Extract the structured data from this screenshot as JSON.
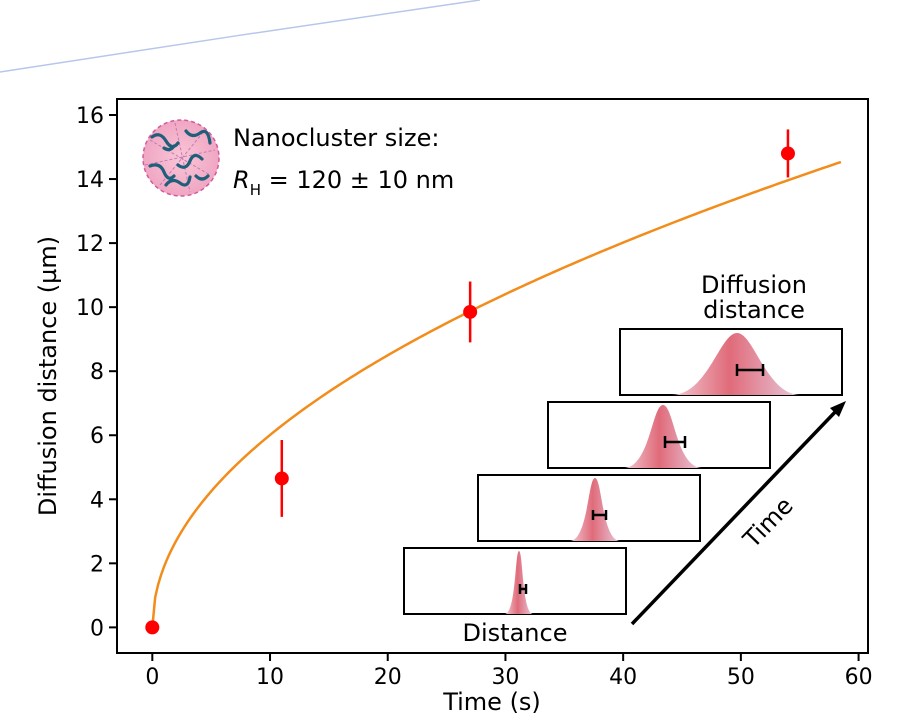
{
  "chart_data": {
    "type": "scatter",
    "title": "",
    "xlabel": "Time (s)",
    "ylabel": "Diffusion distance (µm)",
    "xlim": [
      -3,
      60.8
    ],
    "ylim": [
      -0.8,
      16.5
    ],
    "xticks": [
      0,
      10,
      20,
      30,
      40,
      50,
      60
    ],
    "yticks": [
      0,
      2,
      4,
      6,
      8,
      10,
      12,
      14,
      16
    ],
    "grid": false,
    "series": [
      {
        "name": "measured",
        "kind": "scatter-errorbar",
        "color": "#ff0000",
        "x": [
          0,
          11,
          27,
          54
        ],
        "y": [
          0,
          4.65,
          9.85,
          14.8
        ],
        "yerr": [
          0,
          1.2,
          0.95,
          0.75
        ]
      },
      {
        "name": "fit",
        "kind": "line",
        "color": "#f28c1b",
        "model": "sqrt",
        "coefficient": 1.9,
        "x_range": [
          0,
          58.5
        ]
      }
    ],
    "annotations": {
      "size_label": "Nanocluster size:",
      "rh_symbol": "R",
      "rh_subscript": "H",
      "rh_value": " = 120 ± 10 nm"
    }
  },
  "inset": {
    "title_line1": "Diffusion",
    "title_line2": "distance",
    "x_label": "Distance",
    "time_label": "Time",
    "profile_color": "#e06b7a"
  }
}
